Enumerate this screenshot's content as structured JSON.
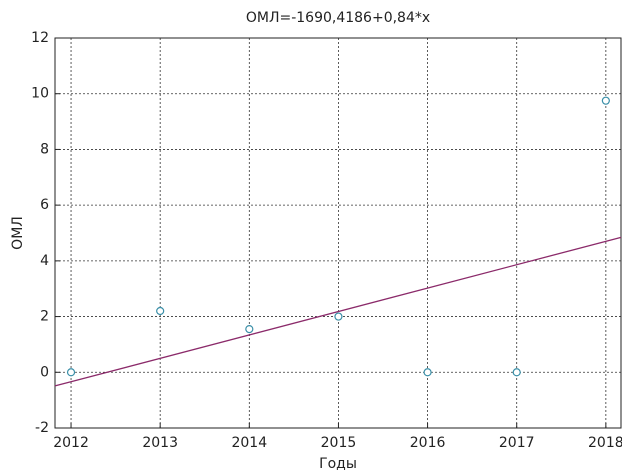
{
  "chart_data": {
    "type": "scatter",
    "title": "ОМЛ=-1690,4186+0,84*x",
    "x_label": "Годы",
    "y_label": "ОМЛ",
    "x": [
      2012,
      2013,
      2014,
      2015,
      2016,
      2017,
      2018
    ],
    "series": [
      {
        "color": "#3a8fa8",
        "values": [
          0,
          2.2,
          1.55,
          2.0,
          0,
          0,
          9.75
        ]
      }
    ],
    "fit": {
      "intercept": -1690.4186,
      "slope": 0.84,
      "color": "#8b2a6a"
    },
    "xlim": [
      2011.82,
      2018.17
    ],
    "ylim": [
      -2,
      12
    ],
    "xticks": [
      2012,
      2013,
      2014,
      2015,
      2016,
      2017,
      2018
    ],
    "yticks": [
      -2,
      0,
      2,
      4,
      6,
      8,
      10,
      12
    ],
    "grid": true
  }
}
